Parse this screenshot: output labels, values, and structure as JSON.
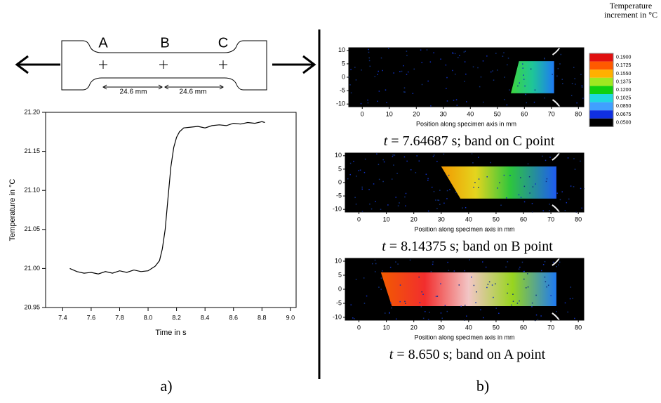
{
  "chart_data": [
    {
      "type": "line",
      "xlabel": "Time in s",
      "ylabel": "Temperature in °C",
      "color": "#000000",
      "x": [
        7.45,
        7.5,
        7.55,
        7.6,
        7.65,
        7.7,
        7.75,
        7.8,
        7.85,
        7.9,
        7.95,
        8.0,
        8.05,
        8.08,
        8.1,
        8.12,
        8.14,
        8.16,
        8.18,
        8.2,
        8.22,
        8.25,
        8.3,
        8.35,
        8.4,
        8.45,
        8.5,
        8.55,
        8.6,
        8.65,
        8.7,
        8.75,
        8.8,
        8.82
      ],
      "y": [
        21.0,
        20.996,
        20.994,
        20.995,
        20.993,
        20.996,
        20.994,
        20.997,
        20.995,
        20.998,
        20.996,
        20.997,
        21.003,
        21.01,
        21.025,
        21.05,
        21.09,
        21.13,
        21.155,
        21.168,
        21.175,
        21.18,
        21.181,
        21.182,
        21.18,
        21.183,
        21.184,
        21.183,
        21.186,
        21.185,
        21.187,
        21.186,
        21.188,
        21.187
      ],
      "xlim": [
        7.28,
        9.04
      ],
      "ylim": [
        20.95,
        21.2
      ],
      "xticks": [
        7.4,
        7.6,
        7.8,
        {
          "value": 8,
          "label": "8.0"
        },
        8.2,
        8.4,
        8.6,
        8.8,
        {
          "value": 9,
          "label": "9.0"
        }
      ],
      "yticks": [
        20.95,
        {
          "value": 21,
          "label": "21.00"
        },
        21.05,
        {
          "value": 21.1,
          "label": "21.10"
        },
        21.15,
        {
          "value": 21.2,
          "label": "21.20"
        }
      ]
    },
    {
      "type": "heatmap",
      "xlabel": "Position along specimen axis in mm",
      "xlim": [
        -5,
        82
      ],
      "ylim": [
        -11,
        11
      ],
      "xticks": [
        0,
        10,
        20,
        30,
        40,
        50,
        60,
        70,
        80
      ],
      "yticks": [
        10,
        5,
        0,
        -5,
        -10
      ],
      "caption": {
        "var": "t",
        "text": " = 7.64687 s; band on C point"
      }
    },
    {
      "type": "heatmap",
      "xlabel": "Position along specimen axis in mm",
      "xlim": [
        -5,
        82
      ],
      "ylim": [
        -11,
        11
      ],
      "xticks": [
        0,
        10,
        20,
        30,
        40,
        50,
        60,
        70,
        80
      ],
      "yticks": [
        10,
        5,
        0,
        -5,
        -10
      ],
      "caption": {
        "var": "t",
        "text": " = 8.14375 s; band on B point"
      }
    },
    {
      "type": "heatmap",
      "xlabel": "Position along specimen axis in mm",
      "xlim": [
        -5,
        82
      ],
      "ylim": [
        -11,
        11
      ],
      "xticks": [
        0,
        10,
        20,
        30,
        40,
        50,
        60,
        70,
        80
      ],
      "yticks": [
        10,
        5,
        0,
        -5,
        -10
      ],
      "caption": {
        "var": "t",
        "text": " = 8.650 s; band on A point"
      }
    }
  ],
  "colorbar": {
    "title": "Temperature increment in °C",
    "levels": [
      {
        "value": 0.19,
        "label": "0.1900",
        "color": "#e01010"
      },
      {
        "value": 0.1725,
        "label": "0.1725",
        "color": "#ff5a00"
      },
      {
        "value": 0.155,
        "label": "0.1550",
        "color": "#ffb000"
      },
      {
        "value": 0.1375,
        "label": "0.1375",
        "color": "#a0e820"
      },
      {
        "value": 0.12,
        "label": "0.1200",
        "color": "#10d010"
      },
      {
        "value": 0.1025,
        "label": "0.1025",
        "color": "#20d8e0"
      },
      {
        "value": 0.085,
        "label": "0.0850",
        "color": "#40a0ff"
      },
      {
        "value": 0.0675,
        "label": "0.0675",
        "color": "#1030e0"
      },
      {
        "value": 0.05,
        "label": "0.0500",
        "color": "#000000"
      }
    ]
  },
  "specimen": {
    "points": [
      "A",
      "B",
      "C"
    ],
    "dimensions": [
      "24.6 mm",
      "24.6 mm"
    ]
  },
  "panel_labels": [
    "a)",
    "b)"
  ]
}
